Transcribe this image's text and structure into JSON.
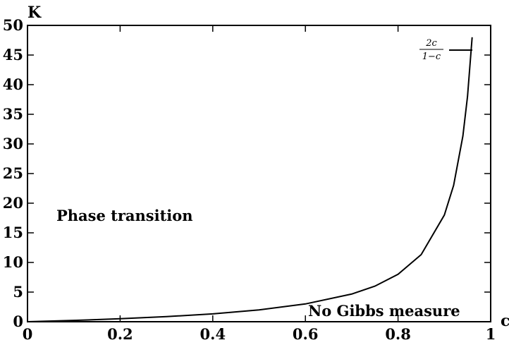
{
  "chart_data": {
    "type": "line",
    "title": "",
    "xlabel": "c",
    "ylabel": "K",
    "xlim": [
      0,
      1
    ],
    "ylim": [
      0,
      50
    ],
    "xticks": [
      "0",
      "0.2",
      "0.4",
      "0.6",
      "0.8",
      "1"
    ],
    "yticks": [
      "0",
      "5",
      "10",
      "15",
      "20",
      "25",
      "30",
      "35",
      "40",
      "45",
      "50"
    ],
    "grid": false,
    "legend": {
      "position": "top-right",
      "entries": [
        {
          "numerator": "2c",
          "denominator": "1−c"
        }
      ]
    },
    "series": [
      {
        "formula": "2c/(1-c)",
        "x": [
          0,
          0.1,
          0.2,
          0.3,
          0.4,
          0.5,
          0.6,
          0.7,
          0.75,
          0.8,
          0.85,
          0.9,
          0.92,
          0.94,
          0.95,
          0.96
        ],
        "y": [
          0,
          0.22,
          0.5,
          0.86,
          1.33,
          2,
          3,
          4.67,
          6,
          8,
          11.33,
          18,
          23,
          31.33,
          38,
          48
        ],
        "color": "#000000"
      }
    ],
    "annotations": [
      {
        "text": "Phase transition",
        "region": "above curve"
      },
      {
        "text": "No Gibbs measure",
        "region": "below curve"
      }
    ]
  }
}
